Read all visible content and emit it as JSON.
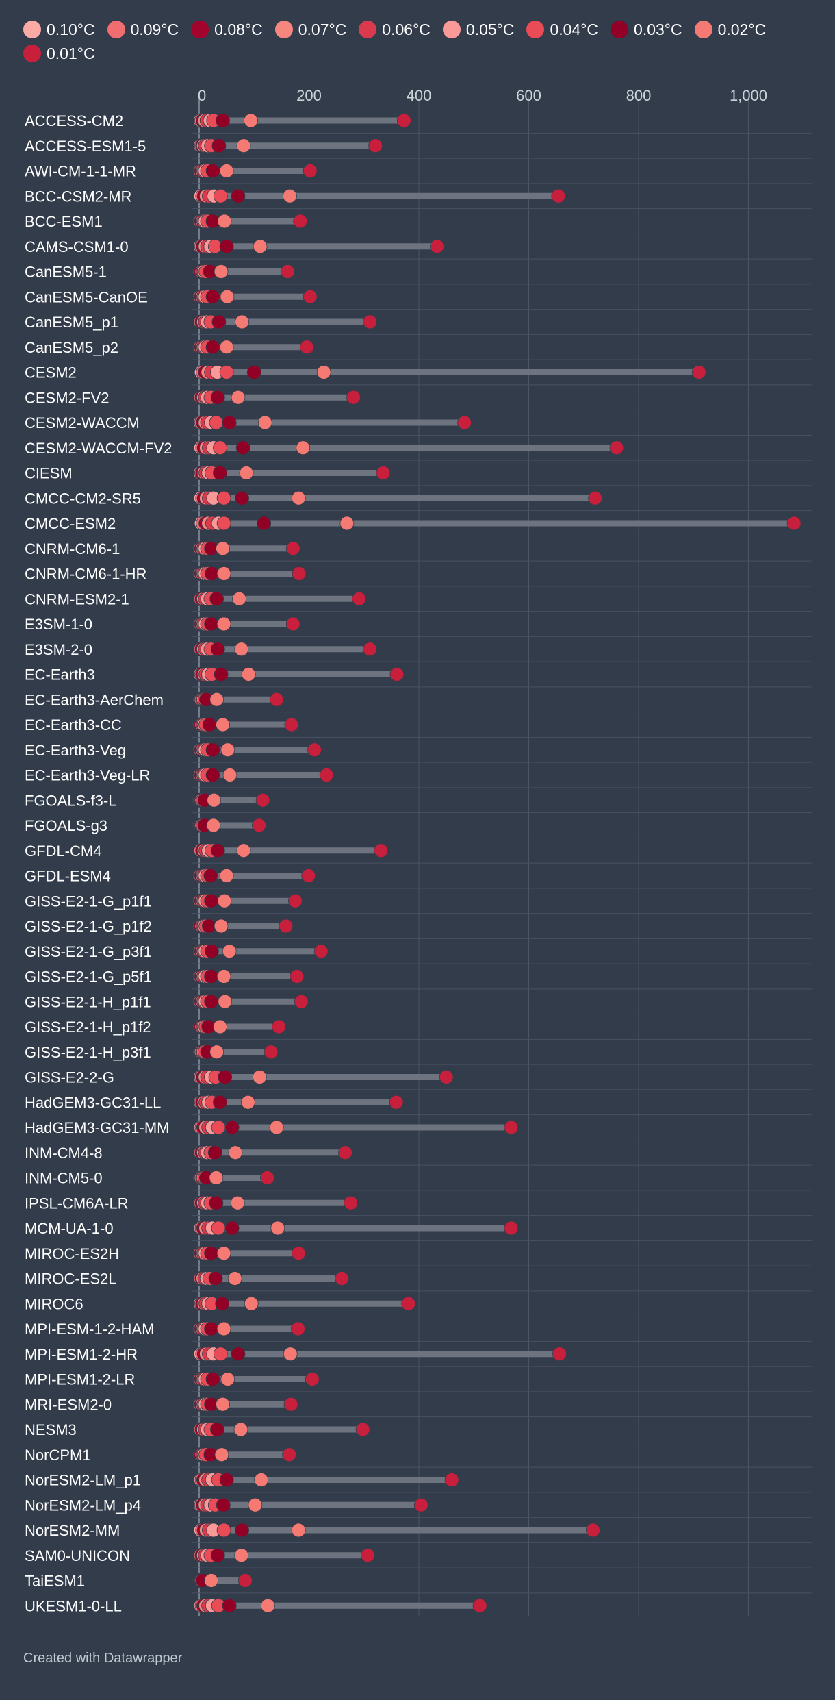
{
  "legend": [
    {
      "label": "0.10°C",
      "color": "#fbaaa6"
    },
    {
      "label": "0.09°C",
      "color": "#f26d70"
    },
    {
      "label": "0.08°C",
      "color": "#a3042e"
    },
    {
      "label": "0.07°C",
      "color": "#f6877f"
    },
    {
      "label": "0.06°C",
      "color": "#db3a4d"
    },
    {
      "label": "0.05°C",
      "color": "#f99a98"
    },
    {
      "label": "0.04°C",
      "color": "#e94b57"
    },
    {
      "label": "0.03°C",
      "color": "#930025"
    },
    {
      "label": "0.02°C",
      "color": "#f57a73"
    },
    {
      "label": "0.01°C",
      "color": "#c8203c"
    }
  ],
  "footer": "Created with Datawrapper",
  "chart_data": {
    "type": "range-dot",
    "title": "",
    "xlabel": "",
    "ylabel": "",
    "x_ticks": [
      0,
      200,
      400,
      600,
      800,
      1000
    ],
    "x_tick_labels": [
      "0",
      "200",
      "400",
      "600",
      "800",
      "1,000"
    ],
    "xlim": [
      0,
      1120
    ],
    "series_names": [
      "0.10°C",
      "0.09°C",
      "0.08°C",
      "0.07°C",
      "0.06°C",
      "0.05°C",
      "0.04°C",
      "0.03°C",
      "0.02°C",
      "0.01°C"
    ],
    "rows": [
      {
        "name": "ACCESS-CM2",
        "values": [
          2,
          4,
          7,
          10,
          14,
          20,
          26,
          43,
          94,
          373
        ]
      },
      {
        "name": "ACCESS-ESM1-5",
        "values": [
          2,
          4,
          6,
          8,
          11,
          16,
          22,
          36,
          81,
          321
        ]
      },
      {
        "name": "AWI-CM-1-1-MR",
        "values": [
          1,
          2,
          4,
          6,
          8,
          11,
          15,
          25,
          50,
          202
        ]
      },
      {
        "name": "BCC-CSM2-MR",
        "values": [
          3,
          6,
          9,
          13,
          18,
          27,
          39,
          71,
          165,
          654
        ]
      },
      {
        "name": "BCC-ESM1",
        "values": [
          1,
          2,
          4,
          6,
          8,
          11,
          15,
          25,
          46,
          184
        ]
      },
      {
        "name": "CAMS-CSM1-0",
        "values": [
          2,
          4,
          7,
          11,
          15,
          21,
          29,
          50,
          111,
          433
        ]
      },
      {
        "name": "CanESM5-1",
        "values": [
          1,
          2,
          3,
          5,
          7,
          9,
          12,
          20,
          40,
          161
        ]
      },
      {
        "name": "CanESM5-CanOE",
        "values": [
          1,
          2,
          4,
          6,
          8,
          11,
          15,
          25,
          51,
          202
        ]
      },
      {
        "name": "CanESM5_p1",
        "values": [
          2,
          3,
          5,
          8,
          11,
          15,
          21,
          36,
          78,
          311
        ]
      },
      {
        "name": "CanESM5_p2",
        "values": [
          1,
          2,
          4,
          6,
          8,
          11,
          15,
          25,
          50,
          196
        ]
      },
      {
        "name": "CESM2",
        "values": [
          4,
          7,
          11,
          16,
          22,
          33,
          50,
          100,
          227,
          910
        ]
      },
      {
        "name": "CESM2-FV2",
        "values": [
          2,
          3,
          5,
          8,
          11,
          15,
          21,
          34,
          71,
          281
        ]
      },
      {
        "name": "CESM2-WACCM",
        "values": [
          2,
          4,
          7,
          11,
          15,
          22,
          31,
          55,
          120,
          483
        ]
      },
      {
        "name": "CESM2-WACCM-FV2",
        "values": [
          3,
          6,
          9,
          13,
          18,
          26,
          38,
          80,
          189,
          760
        ]
      },
      {
        "name": "CIESM",
        "values": [
          2,
          4,
          6,
          9,
          12,
          17,
          23,
          38,
          86,
          335
        ]
      },
      {
        "name": "CMCC-CM2-SR5",
        "values": [
          3,
          6,
          9,
          13,
          18,
          26,
          45,
          78,
          181,
          721
        ]
      },
      {
        "name": "CMCC-ESM2",
        "values": [
          4,
          7,
          12,
          17,
          24,
          35,
          45,
          118,
          269,
          1083
        ]
      },
      {
        "name": "CNRM-CM6-1",
        "values": [
          1,
          2,
          4,
          6,
          8,
          11,
          15,
          22,
          43,
          171
        ]
      },
      {
        "name": "CNRM-CM6-1-HR",
        "values": [
          1,
          2,
          4,
          6,
          8,
          11,
          15,
          23,
          45,
          182
        ]
      },
      {
        "name": "CNRM-ESM2-1",
        "values": [
          2,
          3,
          5,
          8,
          11,
          15,
          21,
          32,
          73,
          291
        ]
      },
      {
        "name": "E3SM-1-0",
        "values": [
          1,
          2,
          4,
          6,
          8,
          11,
          15,
          22,
          45,
          171
        ]
      },
      {
        "name": "E3SM-2-0",
        "values": [
          2,
          3,
          5,
          8,
          11,
          15,
          21,
          34,
          77,
          311
        ]
      },
      {
        "name": "EC-Earth3",
        "values": [
          2,
          4,
          6,
          9,
          12,
          17,
          23,
          40,
          90,
          360
        ]
      },
      {
        "name": "EC-Earth3-AerChem",
        "values": [
          1,
          2,
          3,
          4,
          6,
          8,
          10,
          13,
          32,
          141
        ]
      },
      {
        "name": "EC-Earth3-CC",
        "values": [
          1,
          2,
          3,
          5,
          7,
          9,
          12,
          19,
          43,
          168
        ]
      },
      {
        "name": "EC-Earth3-Veg",
        "values": [
          1,
          2,
          4,
          6,
          8,
          11,
          15,
          25,
          52,
          210
        ]
      },
      {
        "name": "EC-Earth3-Veg-LR",
        "values": [
          1,
          2,
          4,
          6,
          8,
          11,
          15,
          25,
          56,
          232
        ]
      },
      {
        "name": "FGOALS-f3-L",
        "values": [
          0,
          1,
          2,
          3,
          4,
          5,
          7,
          10,
          27,
          116
        ]
      },
      {
        "name": "FGOALS-g3",
        "values": [
          0,
          1,
          2,
          3,
          4,
          5,
          7,
          10,
          26,
          109
        ]
      },
      {
        "name": "GFDL-CM4",
        "values": [
          2,
          3,
          6,
          9,
          12,
          17,
          23,
          34,
          81,
          331
        ]
      },
      {
        "name": "GFDL-ESM4",
        "values": [
          1,
          2,
          4,
          6,
          8,
          11,
          15,
          21,
          50,
          199
        ]
      },
      {
        "name": "GISS-E2-1-G_p1f1",
        "values": [
          1,
          2,
          4,
          6,
          8,
          11,
          15,
          22,
          46,
          175
        ]
      },
      {
        "name": "GISS-E2-1-G_p1f2",
        "values": [
          1,
          2,
          3,
          5,
          7,
          9,
          12,
          18,
          40,
          158
        ]
      },
      {
        "name": "GISS-E2-1-G_p3f1",
        "values": [
          1,
          2,
          4,
          6,
          8,
          11,
          15,
          23,
          55,
          222
        ]
      },
      {
        "name": "GISS-E2-1-G_p5f1",
        "values": [
          1,
          2,
          4,
          6,
          8,
          11,
          15,
          22,
          45,
          178
        ]
      },
      {
        "name": "GISS-E2-1-H_p1f1",
        "values": [
          1,
          2,
          4,
          6,
          8,
          11,
          15,
          22,
          47,
          186
        ]
      },
      {
        "name": "GISS-E2-1-H_p1f2",
        "values": [
          1,
          2,
          3,
          5,
          7,
          9,
          12,
          17,
          38,
          145
        ]
      },
      {
        "name": "GISS-E2-1-H_p3f1",
        "values": [
          1,
          2,
          3,
          4,
          6,
          8,
          10,
          15,
          32,
          131
        ]
      },
      {
        "name": "GISS-E2-2-G",
        "values": [
          2,
          4,
          7,
          11,
          15,
          22,
          30,
          47,
          110,
          450
        ]
      },
      {
        "name": "HadGEM3-GC31-LL",
        "values": [
          2,
          4,
          6,
          9,
          12,
          17,
          23,
          38,
          89,
          359
        ]
      },
      {
        "name": "HadGEM3-GC31-MM",
        "values": [
          3,
          5,
          8,
          12,
          17,
          24,
          35,
          60,
          141,
          568
        ]
      },
      {
        "name": "INM-CM4-8",
        "values": [
          2,
          3,
          5,
          8,
          11,
          15,
          21,
          29,
          66,
          266
        ]
      },
      {
        "name": "INM-CM5-0",
        "values": [
          1,
          2,
          3,
          4,
          6,
          8,
          10,
          13,
          31,
          124
        ]
      },
      {
        "name": "IPSL-CM6A-LR",
        "values": [
          2,
          3,
          5,
          8,
          11,
          15,
          21,
          31,
          70,
          276
        ]
      },
      {
        "name": "MCM-UA-1-0",
        "values": [
          3,
          5,
          8,
          12,
          17,
          24,
          35,
          60,
          143,
          568
        ]
      },
      {
        "name": "MIROC-ES2H",
        "values": [
          1,
          2,
          4,
          6,
          8,
          11,
          15,
          22,
          45,
          181
        ]
      },
      {
        "name": "MIROC-ES2L",
        "values": [
          2,
          3,
          5,
          7,
          10,
          14,
          19,
          30,
          65,
          260
        ]
      },
      {
        "name": "MIROC6",
        "values": [
          2,
          4,
          6,
          9,
          12,
          17,
          23,
          42,
          95,
          381
        ]
      },
      {
        "name": "MPI-ESM-1-2-HAM",
        "values": [
          1,
          2,
          4,
          6,
          8,
          11,
          15,
          22,
          45,
          180
        ]
      },
      {
        "name": "MPI-ESM1-2-HR",
        "values": [
          3,
          6,
          9,
          13,
          18,
          26,
          39,
          71,
          166,
          656
        ]
      },
      {
        "name": "MPI-ESM1-2-LR",
        "values": [
          1,
          2,
          4,
          6,
          8,
          11,
          15,
          25,
          52,
          206
        ]
      },
      {
        "name": "MRI-ESM2-0",
        "values": [
          1,
          2,
          4,
          6,
          8,
          11,
          15,
          22,
          43,
          167
        ]
      },
      {
        "name": "NESM3",
        "values": [
          2,
          3,
          5,
          8,
          11,
          15,
          21,
          33,
          76,
          298
        ]
      },
      {
        "name": "NorCPM1",
        "values": [
          1,
          2,
          3,
          5,
          7,
          9,
          12,
          21,
          41,
          164
        ]
      },
      {
        "name": "NorESM2-LM_p1",
        "values": [
          3,
          5,
          8,
          12,
          17,
          24,
          35,
          50,
          113,
          460
        ]
      },
      {
        "name": "NorESM2-LM_p4",
        "values": [
          2,
          4,
          7,
          11,
          15,
          21,
          29,
          44,
          102,
          404
        ]
      },
      {
        "name": "NorESM2-MM",
        "values": [
          3,
          6,
          9,
          13,
          18,
          26,
          45,
          78,
          181,
          717
        ]
      },
      {
        "name": "SAM0-UNICON",
        "values": [
          2,
          3,
          5,
          8,
          11,
          15,
          21,
          34,
          77,
          307
        ]
      },
      {
        "name": "TaiESM1",
        "values": [
          0,
          1,
          1,
          2,
          3,
          4,
          5,
          7,
          22,
          84
        ]
      },
      {
        "name": "UKESM1-0-LL",
        "values": [
          3,
          5,
          8,
          12,
          17,
          24,
          35,
          55,
          125,
          511
        ]
      }
    ]
  }
}
